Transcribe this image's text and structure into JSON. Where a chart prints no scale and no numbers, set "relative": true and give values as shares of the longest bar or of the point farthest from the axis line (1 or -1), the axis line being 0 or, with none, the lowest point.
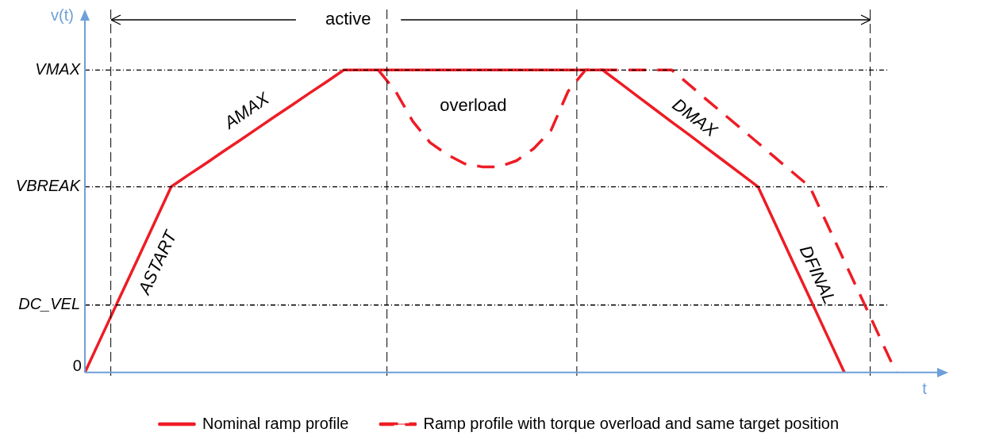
{
  "chart_data": {
    "type": "line",
    "relative": true,
    "xlabel": "t",
    "ylabel": "v(t)",
    "grid": false,
    "legend": "bottom",
    "marker": "none",
    "categories": [
      null,
      null,
      null,
      null,
      null,
      null,
      null,
      null,
      null,
      null,
      null,
      null,
      null,
      null,
      null,
      null,
      null,
      null,
      null,
      null,
      null,
      null,
      null,
      null,
      null,
      null,
      null,
      null,
      null,
      null,
      null,
      null,
      null,
      null,
      null,
      null,
      null,
      null,
      null,
      null,
      null,
      null,
      null,
      null,
      null,
      null,
      null,
      null,
      null
    ],
    "series": [
      {
        "name": "Nominal ramp profile",
        "color": "#ee1c25",
        "line_style": "solid",
        "values": [
          0,
          0.123,
          0.246,
          0.368,
          0.491,
          0.614,
          0.653,
          0.691,
          0.73,
          0.768,
          0.807,
          0.846,
          0.884,
          0.923,
          0.961,
          1,
          1,
          1,
          1,
          1,
          1,
          1,
          1,
          1,
          1,
          1,
          1,
          1,
          1,
          1,
          1,
          0.957,
          0.914,
          0.871,
          0.828,
          0.786,
          0.743,
          0.7,
          0.657,
          0.614,
          0.491,
          0.368,
          0.246,
          0.123,
          0,
          null,
          null,
          null,
          null
        ]
      },
      {
        "name": "Ramp profile with torque overload and same target position",
        "color": "#ee1c25",
        "line_style": "dashed",
        "values": [
          null,
          null,
          null,
          null,
          null,
          null,
          null,
          null,
          null,
          null,
          null,
          null,
          null,
          null,
          null,
          null,
          null,
          1,
          0.93,
          0.83,
          0.76,
          0.72,
          0.69,
          0.68,
          0.68,
          0.7,
          0.74,
          0.8,
          0.93,
          1,
          1,
          1,
          1,
          1,
          1,
          0.952,
          0.903,
          0.855,
          0.807,
          0.759,
          0.71,
          0.662,
          0.614,
          0.491,
          0.368,
          0.246,
          0.123,
          0,
          null
        ]
      }
    ],
    "ref_lines": [
      {
        "axis": "y",
        "value": 1,
        "label": "VMAX",
        "line_style": "dotted",
        "color": "#000000"
      },
      {
        "axis": "y",
        "value": 0.614,
        "label": "VBREAK",
        "line_style": "dotted",
        "color": "#000000"
      },
      {
        "axis": "y",
        "value": 0.223,
        "label": "DC_VEL",
        "line_style": "dotted",
        "color": "#000000"
      }
    ],
    "annotations": [
      "active",
      "AMAX",
      "ASTART",
      "overload",
      "DMAX",
      "DFINAL",
      "0"
    ]
  }
}
